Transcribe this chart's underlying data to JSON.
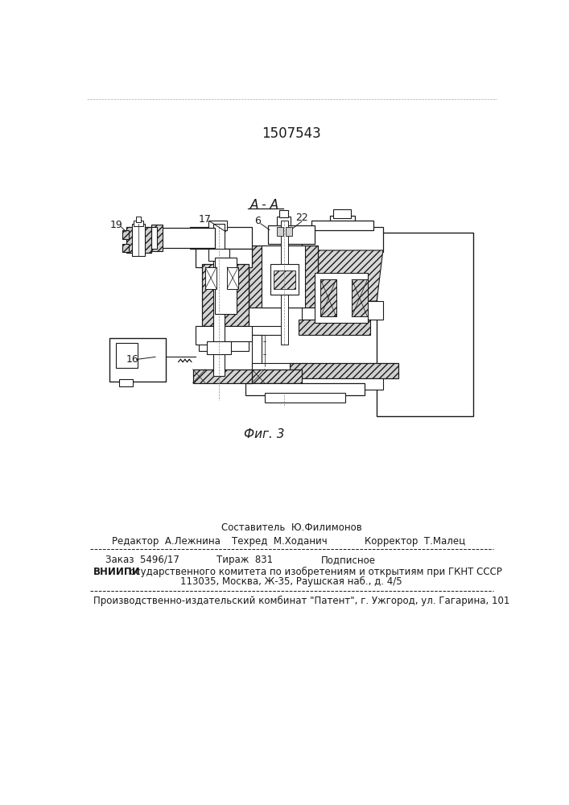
{
  "patent_number": "1507543",
  "fig_label": "Фиг. 3",
  "section_label": "А - А",
  "bg_color": "#ffffff",
  "text_color": "#1a1a1a",
  "hatch_color": "#000000",
  "footer": {
    "sestavitel": "Составитель  Ю.Филимонов",
    "redaktor": "Редактор  А.Лежнина",
    "tehred": "Техред  М.Ходанич",
    "korrektor": "Корректор  Т.Малец",
    "zakaz": "Заказ  5496/17",
    "tirazh": "Тираж  831",
    "podpisnoe": "Подписное",
    "vniiipi_line1": "ВНИИПИ Государственного комитета по изобретениям и открытиям при ГКНТ СССР",
    "vniiipi_line2": "113035, Москва, Ж-35, Раушская наб., д. 4/5",
    "proizv": "Производственно-издательский комбинат \"Патент\", г. Ужгород, ул. Гагарина, 101"
  }
}
